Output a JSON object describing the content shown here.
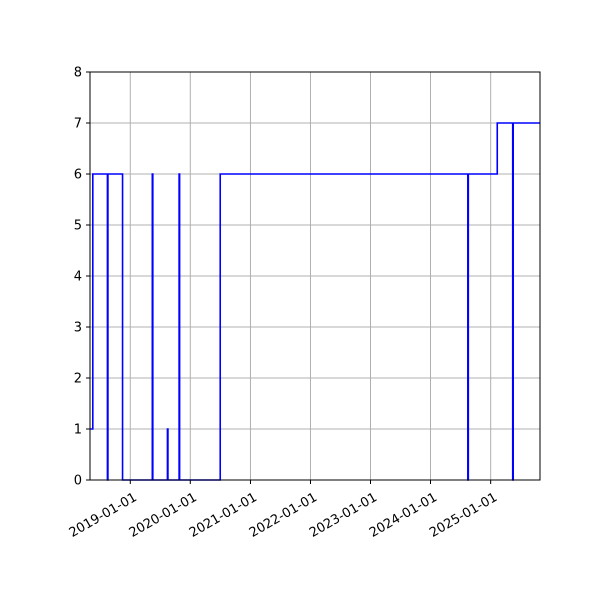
{
  "chart_data": {
    "type": "line",
    "title": "",
    "xlabel": "",
    "ylabel": "",
    "grid": true,
    "line_color": "#0000ff",
    "x_ticks": [
      "2019-01-01",
      "2020-01-01",
      "2021-01-01",
      "2022-01-01",
      "2023-01-01",
      "2024-01-01",
      "2025-01-01"
    ],
    "y_ticks": [
      "0",
      "1",
      "2",
      "3",
      "4",
      "5",
      "6",
      "7",
      "8"
    ],
    "xlim": [
      "2018-05-01",
      "2025-10-28"
    ],
    "ylim": [
      0,
      8
    ],
    "series": [
      {
        "step": "post",
        "points": [
          {
            "x": "2018-05-01",
            "y": 1
          },
          {
            "x": "2018-05-18",
            "y": 6
          },
          {
            "x": "2018-08-15",
            "y": 0
          },
          {
            "x": "2018-08-18",
            "y": 6
          },
          {
            "x": "2018-11-15",
            "y": 0
          },
          {
            "x": "2019-05-15",
            "y": 6
          },
          {
            "x": "2019-05-18",
            "y": 0
          },
          {
            "x": "2019-08-15",
            "y": 1
          },
          {
            "x": "2019-08-18",
            "y": 0
          },
          {
            "x": "2019-10-25",
            "y": 6
          },
          {
            "x": "2019-10-28",
            "y": 0
          },
          {
            "x": "2020-07-01",
            "y": 6
          },
          {
            "x": "2024-08-15",
            "y": 0
          },
          {
            "x": "2024-08-18",
            "y": 6
          },
          {
            "x": "2025-02-10",
            "y": 7
          },
          {
            "x": "2025-05-15",
            "y": 0
          },
          {
            "x": "2025-05-18",
            "y": 7
          },
          {
            "x": "2025-10-28",
            "y": 7
          }
        ]
      }
    ]
  }
}
